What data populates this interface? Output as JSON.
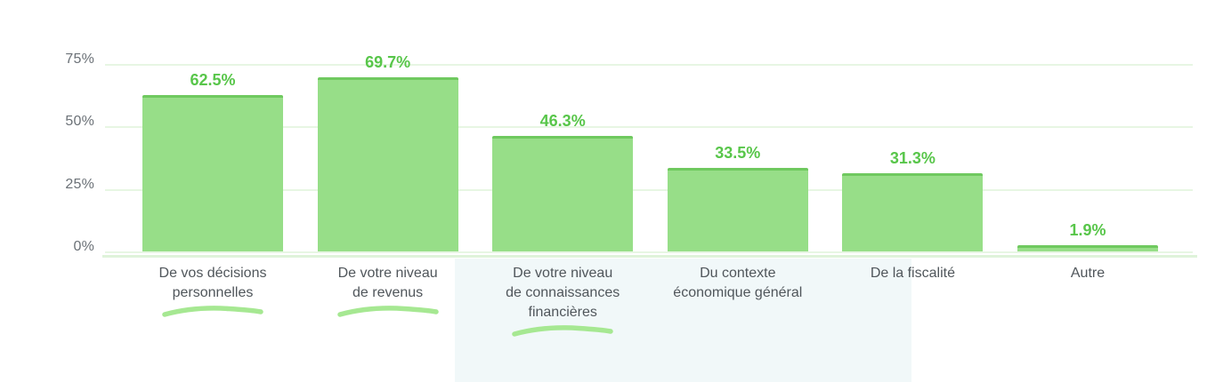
{
  "chart_data": {
    "type": "bar",
    "title": "",
    "xlabel": "",
    "ylabel": "",
    "categories": [
      "De vos décisions personnelles",
      "De votre niveau de revenus",
      "De votre niveau de connaissances financières",
      "Du contexte économique général",
      "De la fiscalité",
      "Autre"
    ],
    "category_lines": [
      [
        "De vos décisions",
        "personnelles"
      ],
      [
        "De votre niveau",
        "de revenus"
      ],
      [
        "De votre niveau",
        "de connaissances",
        "financières"
      ],
      [
        "Du contexte",
        "économique général"
      ],
      [
        "De la fiscalité"
      ],
      [
        "Autre"
      ]
    ],
    "values": [
      62.5,
      69.7,
      46.3,
      33.5,
      31.3,
      1.9
    ],
    "value_labels": [
      "62.5%",
      "69.7%",
      "46.3%",
      "33.5%",
      "31.3%",
      "1.9%"
    ],
    "underlined": [
      true,
      true,
      true,
      false,
      false,
      false
    ],
    "y_ticks": [
      "75%",
      "50%",
      "25%",
      "0%"
    ],
    "y_tick_values": [
      75,
      50,
      25,
      0
    ],
    "ylim": [
      0,
      75
    ],
    "grid": true,
    "legend": false,
    "colors": {
      "bar_fill": "#97de88",
      "bar_border": "#6fc95f",
      "value_label": "#58c64a",
      "gridline": "#e7f6e3",
      "axis_line": "#dff3da",
      "tick_label": "#6b7177",
      "category_label": "#50565b",
      "underline_marker": "#a6e892",
      "panel_tint": "#f1f8f9"
    }
  }
}
